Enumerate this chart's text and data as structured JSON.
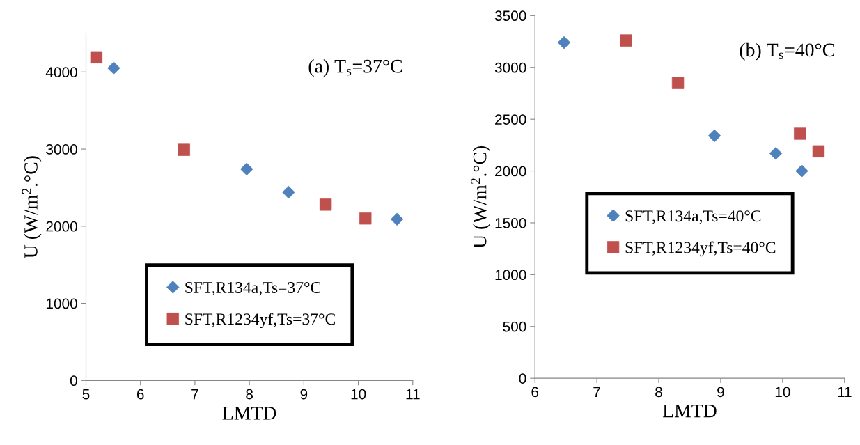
{
  "chart_data": [
    {
      "type": "scatter",
      "xlabel": "LMTD",
      "ylabel": "U (W/m$^{2}$.°C)",
      "annotations": [
        "(a) T$_{s}$=37°C"
      ],
      "xlim": [
        5,
        11
      ],
      "xticks": [
        5,
        6,
        7,
        8,
        9,
        10,
        11
      ],
      "ylim": [
        0,
        4500
      ],
      "yticks": [
        0,
        1000,
        2000,
        3000,
        4000
      ],
      "grid": false,
      "legend": "bottom",
      "series": [
        {
          "name": "SFT,R134a,Ts=37°C",
          "color": "#4f81bd",
          "marker": "diamond",
          "x": [
            5.51,
            7.95,
            8.72,
            10.71
          ],
          "values": [
            4050,
            2740,
            2440,
            2090
          ]
        },
        {
          "name": "SFT,R1234yf,Ts=37°C",
          "color": "#c0504d",
          "marker": "square",
          "x": [
            5.19,
            6.8,
            9.4,
            10.13
          ],
          "values": [
            4190,
            2990,
            2280,
            2100
          ]
        }
      ]
    },
    {
      "type": "scatter",
      "xlabel": "LMTD",
      "ylabel": "U (W/m$^{2}$.°C)",
      "annotations": [
        "(b) T$_{s}$=40°C"
      ],
      "xlim": [
        6,
        11
      ],
      "xticks": [
        6,
        7,
        8,
        9,
        10,
        11
      ],
      "ylim": [
        0,
        3500
      ],
      "yticks": [
        0,
        500,
        1000,
        1500,
        2000,
        2500,
        3000,
        3500
      ],
      "grid": false,
      "legend": "center",
      "series": [
        {
          "name": "SFT,R134a,Ts=40°C",
          "color": "#4f81bd",
          "marker": "diamond",
          "x": [
            6.47,
            8.9,
            9.89,
            10.31
          ],
          "values": [
            3240,
            2340,
            2170,
            2000
          ]
        },
        {
          "name": "SFT,R1234yf,Ts=40°C",
          "color": "#c0504d",
          "marker": "square",
          "x": [
            7.47,
            8.31,
            10.28,
            10.58
          ],
          "values": [
            3260,
            2850,
            2360,
            2190
          ]
        }
      ]
    }
  ]
}
